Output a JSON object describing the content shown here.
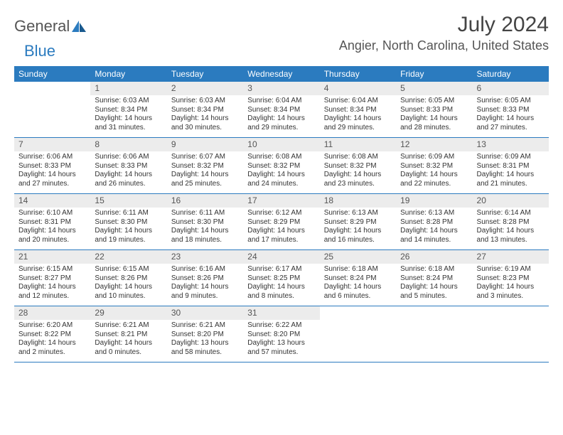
{
  "logo": {
    "text1": "General",
    "text2": "Blue"
  },
  "title": "July 2024",
  "location": "Angier, North Carolina, United States",
  "colors": {
    "header_bg": "#2b7bbf",
    "header_text": "#ffffff",
    "daynum_bg": "#ececec",
    "rule": "#2b7bbf",
    "body_text": "#333333"
  },
  "dayNames": [
    "Sunday",
    "Monday",
    "Tuesday",
    "Wednesday",
    "Thursday",
    "Friday",
    "Saturday"
  ],
  "weeks": [
    [
      {
        "n": "",
        "sr": "",
        "ss": "",
        "dl": ""
      },
      {
        "n": "1",
        "sr": "Sunrise: 6:03 AM",
        "ss": "Sunset: 8:34 PM",
        "dl": "Daylight: 14 hours and 31 minutes."
      },
      {
        "n": "2",
        "sr": "Sunrise: 6:03 AM",
        "ss": "Sunset: 8:34 PM",
        "dl": "Daylight: 14 hours and 30 minutes."
      },
      {
        "n": "3",
        "sr": "Sunrise: 6:04 AM",
        "ss": "Sunset: 8:34 PM",
        "dl": "Daylight: 14 hours and 29 minutes."
      },
      {
        "n": "4",
        "sr": "Sunrise: 6:04 AM",
        "ss": "Sunset: 8:34 PM",
        "dl": "Daylight: 14 hours and 29 minutes."
      },
      {
        "n": "5",
        "sr": "Sunrise: 6:05 AM",
        "ss": "Sunset: 8:33 PM",
        "dl": "Daylight: 14 hours and 28 minutes."
      },
      {
        "n": "6",
        "sr": "Sunrise: 6:05 AM",
        "ss": "Sunset: 8:33 PM",
        "dl": "Daylight: 14 hours and 27 minutes."
      }
    ],
    [
      {
        "n": "7",
        "sr": "Sunrise: 6:06 AM",
        "ss": "Sunset: 8:33 PM",
        "dl": "Daylight: 14 hours and 27 minutes."
      },
      {
        "n": "8",
        "sr": "Sunrise: 6:06 AM",
        "ss": "Sunset: 8:33 PM",
        "dl": "Daylight: 14 hours and 26 minutes."
      },
      {
        "n": "9",
        "sr": "Sunrise: 6:07 AM",
        "ss": "Sunset: 8:32 PM",
        "dl": "Daylight: 14 hours and 25 minutes."
      },
      {
        "n": "10",
        "sr": "Sunrise: 6:08 AM",
        "ss": "Sunset: 8:32 PM",
        "dl": "Daylight: 14 hours and 24 minutes."
      },
      {
        "n": "11",
        "sr": "Sunrise: 6:08 AM",
        "ss": "Sunset: 8:32 PM",
        "dl": "Daylight: 14 hours and 23 minutes."
      },
      {
        "n": "12",
        "sr": "Sunrise: 6:09 AM",
        "ss": "Sunset: 8:32 PM",
        "dl": "Daylight: 14 hours and 22 minutes."
      },
      {
        "n": "13",
        "sr": "Sunrise: 6:09 AM",
        "ss": "Sunset: 8:31 PM",
        "dl": "Daylight: 14 hours and 21 minutes."
      }
    ],
    [
      {
        "n": "14",
        "sr": "Sunrise: 6:10 AM",
        "ss": "Sunset: 8:31 PM",
        "dl": "Daylight: 14 hours and 20 minutes."
      },
      {
        "n": "15",
        "sr": "Sunrise: 6:11 AM",
        "ss": "Sunset: 8:30 PM",
        "dl": "Daylight: 14 hours and 19 minutes."
      },
      {
        "n": "16",
        "sr": "Sunrise: 6:11 AM",
        "ss": "Sunset: 8:30 PM",
        "dl": "Daylight: 14 hours and 18 minutes."
      },
      {
        "n": "17",
        "sr": "Sunrise: 6:12 AM",
        "ss": "Sunset: 8:29 PM",
        "dl": "Daylight: 14 hours and 17 minutes."
      },
      {
        "n": "18",
        "sr": "Sunrise: 6:13 AM",
        "ss": "Sunset: 8:29 PM",
        "dl": "Daylight: 14 hours and 16 minutes."
      },
      {
        "n": "19",
        "sr": "Sunrise: 6:13 AM",
        "ss": "Sunset: 8:28 PM",
        "dl": "Daylight: 14 hours and 14 minutes."
      },
      {
        "n": "20",
        "sr": "Sunrise: 6:14 AM",
        "ss": "Sunset: 8:28 PM",
        "dl": "Daylight: 14 hours and 13 minutes."
      }
    ],
    [
      {
        "n": "21",
        "sr": "Sunrise: 6:15 AM",
        "ss": "Sunset: 8:27 PM",
        "dl": "Daylight: 14 hours and 12 minutes."
      },
      {
        "n": "22",
        "sr": "Sunrise: 6:15 AM",
        "ss": "Sunset: 8:26 PM",
        "dl": "Daylight: 14 hours and 10 minutes."
      },
      {
        "n": "23",
        "sr": "Sunrise: 6:16 AM",
        "ss": "Sunset: 8:26 PM",
        "dl": "Daylight: 14 hours and 9 minutes."
      },
      {
        "n": "24",
        "sr": "Sunrise: 6:17 AM",
        "ss": "Sunset: 8:25 PM",
        "dl": "Daylight: 14 hours and 8 minutes."
      },
      {
        "n": "25",
        "sr": "Sunrise: 6:18 AM",
        "ss": "Sunset: 8:24 PM",
        "dl": "Daylight: 14 hours and 6 minutes."
      },
      {
        "n": "26",
        "sr": "Sunrise: 6:18 AM",
        "ss": "Sunset: 8:24 PM",
        "dl": "Daylight: 14 hours and 5 minutes."
      },
      {
        "n": "27",
        "sr": "Sunrise: 6:19 AM",
        "ss": "Sunset: 8:23 PM",
        "dl": "Daylight: 14 hours and 3 minutes."
      }
    ],
    [
      {
        "n": "28",
        "sr": "Sunrise: 6:20 AM",
        "ss": "Sunset: 8:22 PM",
        "dl": "Daylight: 14 hours and 2 minutes."
      },
      {
        "n": "29",
        "sr": "Sunrise: 6:21 AM",
        "ss": "Sunset: 8:21 PM",
        "dl": "Daylight: 14 hours and 0 minutes."
      },
      {
        "n": "30",
        "sr": "Sunrise: 6:21 AM",
        "ss": "Sunset: 8:20 PM",
        "dl": "Daylight: 13 hours and 58 minutes."
      },
      {
        "n": "31",
        "sr": "Sunrise: 6:22 AM",
        "ss": "Sunset: 8:20 PM",
        "dl": "Daylight: 13 hours and 57 minutes."
      },
      {
        "n": "",
        "sr": "",
        "ss": "",
        "dl": ""
      },
      {
        "n": "",
        "sr": "",
        "ss": "",
        "dl": ""
      },
      {
        "n": "",
        "sr": "",
        "ss": "",
        "dl": ""
      }
    ]
  ]
}
